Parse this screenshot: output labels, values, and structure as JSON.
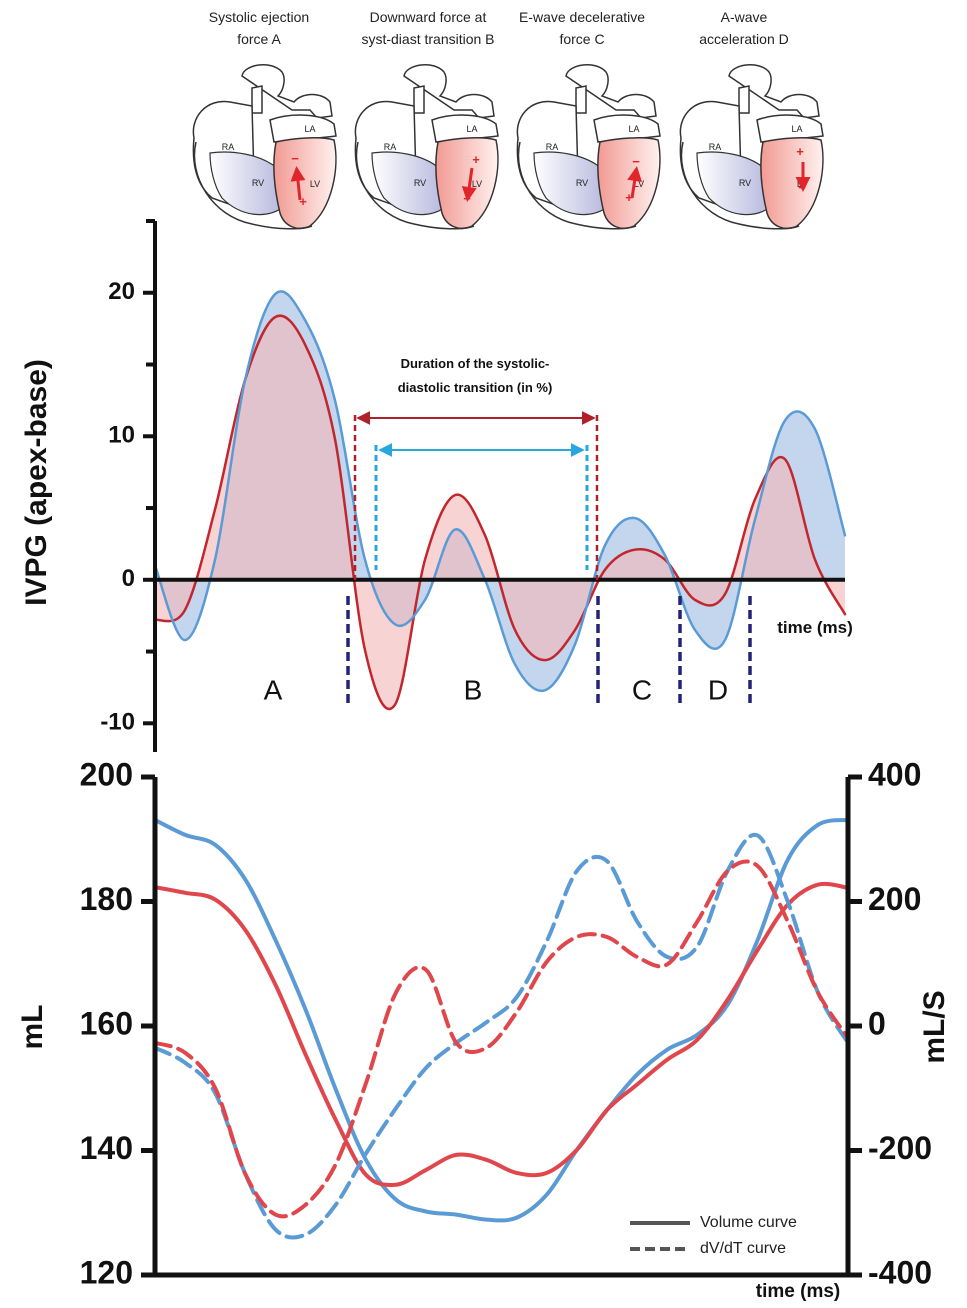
{
  "diagrams": [
    {
      "caption": [
        "Systolic ejection",
        "force A"
      ],
      "labels": [
        "RA",
        "RV",
        "LA",
        "LV"
      ],
      "signs": [
        "−",
        "+"
      ]
    },
    {
      "caption": [
        "Downward force at",
        "syst-diast transition B"
      ],
      "labels": [
        "RA",
        "RV",
        "LA",
        "LV"
      ],
      "signs": [
        "+",
        "−"
      ]
    },
    {
      "caption": [
        "E-wave decelerative",
        "force C"
      ],
      "labels": [
        "RA",
        "RV",
        "LA",
        "LV"
      ],
      "signs": [
        "−",
        "+"
      ]
    },
    {
      "caption": [
        "A-wave",
        "acceleration D"
      ],
      "labels": [
        "RA",
        "RV",
        "LA",
        "LV"
      ],
      "signs": [
        "+",
        "−"
      ]
    }
  ],
  "chart_data": [
    {
      "type": "line",
      "ylabel": "IVPG (apex-base)",
      "xlabel": "time (ms)",
      "ylim": [
        -12,
        25
      ],
      "yticks": [
        -10,
        0,
        10,
        20
      ],
      "minor_yticks": [
        -5,
        5,
        15,
        25
      ],
      "annotation": [
        "Duration of the systolic-",
        "diastolic transition (in %)"
      ],
      "phase_labels": [
        "A",
        "B",
        "C",
        "D"
      ],
      "series": [
        {
          "color": "#c1272d",
          "fill": "#f4b6b8",
          "values": [
            -2.8,
            -2.1,
            4.9,
            13.9,
            18.3,
            16.4,
            9.8,
            -4.9,
            -8.7,
            1.4,
            5.9,
            3.1,
            -3.5,
            -5.6,
            -3.5,
            0.7,
            2.1,
            1.4,
            -1.4,
            -1.0,
            5.6,
            8.4,
            1.4,
            -2.4
          ]
        },
        {
          "color": "#5b9bd5",
          "fill": "#b9cfea",
          "values": [
            1.0,
            -4.2,
            1.4,
            13.9,
            19.9,
            18.1,
            12.5,
            1.4,
            -3.1,
            -1.4,
            3.5,
            0,
            -5.9,
            -7.7,
            -4.5,
            2.4,
            4.3,
            1.7,
            -3.5,
            -4.2,
            4.2,
            11.1,
            10.5,
            3.1
          ]
        }
      ]
    },
    {
      "type": "line",
      "ylabel": "mL",
      "y2label": "mL/S",
      "xlabel": "time (ms)",
      "ylim": [
        120,
        200
      ],
      "yticks": [
        120,
        140,
        160,
        180,
        200
      ],
      "y2lim": [
        -400,
        400
      ],
      "y2ticks": [
        -400,
        -200,
        0,
        200,
        400
      ],
      "legend": [
        {
          "label": "Volume curve",
          "dash": false
        },
        {
          "label": "dV/dT curve",
          "dash": true
        }
      ],
      "legend_color": "#555555",
      "series": [
        {
          "color": "#5b9bd5",
          "dash": false,
          "values": [
            193.1,
            190.7,
            189.1,
            183.5,
            173.8,
            162.6,
            149.8,
            138.5,
            132.1,
            130.2,
            129.7,
            128.9,
            129.2,
            132.9,
            140.1,
            146.5,
            152.2,
            156.2,
            158.6,
            163.4,
            173.8,
            186.7,
            192.3,
            193.1
          ]
        },
        {
          "color": "#e0474c",
          "dash": false,
          "values": [
            182.3,
            181.4,
            180.3,
            175.4,
            166.6,
            155.4,
            144.9,
            136.1,
            134.5,
            136.9,
            139.3,
            138.5,
            136.4,
            136.4,
            140.1,
            146.5,
            150.6,
            154.6,
            157.8,
            164.2,
            172.2,
            179.5,
            182.7,
            182.2
          ]
        },
        {
          "color": "#5b9bd5",
          "dash": true,
          "axis": "y2",
          "values": [
            -35,
            -59,
            -108,
            -238,
            -327,
            -335,
            -287,
            -205,
            -132,
            -67,
            -27,
            6,
            46,
            136,
            249,
            265,
            168,
            111,
            128,
            249,
            306,
            200,
            54,
            -27
          ]
        },
        {
          "color": "#e0474c",
          "dash": true,
          "axis": "y2",
          "values": [
            -27,
            -43,
            -100,
            -238,
            -303,
            -287,
            -222,
            -92,
            54,
            90,
            -27,
            -35,
            22,
            103,
            143,
            143,
            111,
            99,
            168,
            249,
            257,
            168,
            54,
            -19
          ]
        }
      ]
    }
  ]
}
